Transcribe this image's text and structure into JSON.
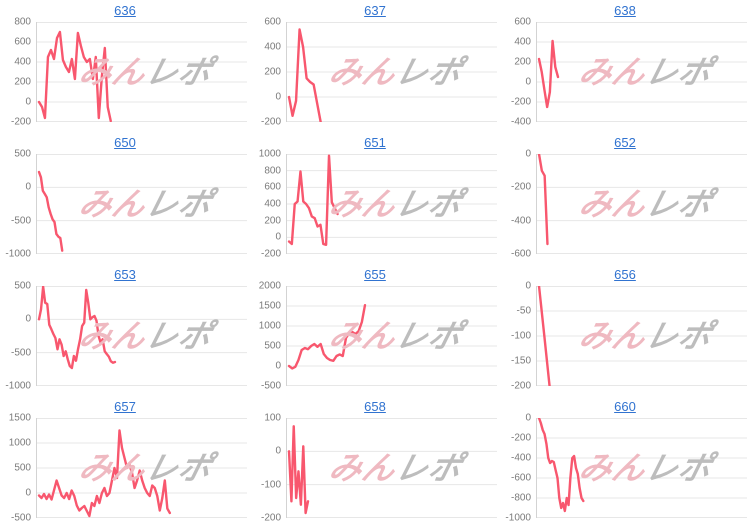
{
  "watermark": {
    "pink": "みん",
    "gray": "レポ"
  },
  "colors": {
    "line": "#f8576e",
    "grid": "#e7e7e7",
    "axis": "#d3d3d3",
    "link": "#3173d0"
  },
  "chart_data": [
    {
      "type": "line",
      "id": "636",
      "ylim": [
        -200,
        800
      ],
      "yticks": [
        800,
        600,
        400,
        200,
        0,
        -200
      ],
      "span": 0.34,
      "values": [
        0,
        -50,
        -160,
        450,
        520,
        430,
        640,
        700,
        420,
        350,
        300,
        430,
        230,
        690,
        560,
        450,
        400,
        430,
        230,
        450,
        -160,
        250,
        540,
        -50,
        -190
      ]
    },
    {
      "type": "line",
      "id": "637",
      "ylim": [
        -200,
        600
      ],
      "yticks": [
        600,
        400,
        200,
        0,
        -200
      ],
      "span": 0.15,
      "values": [
        0,
        -150,
        -30,
        540,
        400,
        150,
        120,
        100,
        -50,
        -200
      ]
    },
    {
      "type": "line",
      "id": "638",
      "ylim": [
        -400,
        600
      ],
      "yticks": [
        600,
        400,
        200,
        0,
        -200,
        -400
      ],
      "span": 0.09,
      "values": [
        230,
        100,
        -80,
        -250,
        -100,
        410,
        150,
        50
      ]
    },
    {
      "type": "line",
      "id": "650",
      "ylim": [
        -1000,
        500
      ],
      "yticks": [
        500,
        0,
        -500,
        -1000
      ],
      "span": 0.11,
      "values": [
        230,
        150,
        -50,
        -100,
        -150,
        -300,
        -400,
        -480,
        -520,
        -700,
        -740,
        -760,
        -950
      ]
    },
    {
      "type": "line",
      "id": "651",
      "ylim": [
        -200,
        1000
      ],
      "yticks": [
        1000,
        800,
        600,
        400,
        200,
        0,
        -200
      ],
      "span": 0.23,
      "values": [
        -50,
        -80,
        400,
        430,
        790,
        430,
        400,
        350,
        250,
        230,
        130,
        150,
        -80,
        -90,
        980,
        420,
        350,
        280
      ]
    },
    {
      "type": "line",
      "id": "652",
      "ylim": [
        -600,
        0
      ],
      "yticks": [
        0,
        -200,
        -400,
        -600
      ],
      "span": 0.04,
      "values": [
        0,
        -100,
        -130,
        -540
      ]
    },
    {
      "type": "line",
      "id": "653",
      "ylim": [
        -1000,
        500
      ],
      "yticks": [
        500,
        0,
        -500,
        -1000
      ],
      "span": 0.36,
      "values": [
        0,
        150,
        490,
        250,
        230,
        -80,
        -150,
        -220,
        -280,
        -450,
        -300,
        -380,
        -550,
        -480,
        -600,
        -700,
        -730,
        -550,
        -620,
        -450,
        -300,
        -100,
        -50,
        440,
        250,
        0,
        30,
        50,
        -20,
        -250,
        -350,
        -300,
        -480,
        -520,
        -560,
        -630,
        -650,
        -640
      ]
    },
    {
      "type": "line",
      "id": "655",
      "ylim": [
        -500,
        2000
      ],
      "yticks": [
        2000,
        1500,
        1000,
        500,
        0,
        -500
      ],
      "span": 0.36,
      "values": [
        0,
        -60,
        -20,
        150,
        400,
        450,
        420,
        500,
        550,
        480,
        550,
        300,
        200,
        150,
        130,
        250,
        290,
        250,
        700,
        820,
        850,
        800,
        870,
        1100,
        1520
      ]
    },
    {
      "type": "line",
      "id": "656",
      "ylim": [
        -200,
        0
      ],
      "yticks": [
        0,
        -50,
        -100,
        -150,
        -200
      ],
      "span": 0.05,
      "values": [
        0,
        -100,
        -200
      ]
    },
    {
      "type": "line",
      "id": "657",
      "ylim": [
        -500,
        1500
      ],
      "yticks": [
        1500,
        1000,
        500,
        0,
        -500
      ],
      "span": 0.62,
      "values": [
        -50,
        -100,
        -20,
        -120,
        -30,
        -130,
        60,
        250,
        100,
        -50,
        -100,
        0,
        -120,
        50,
        -60,
        -250,
        -350,
        -300,
        -260,
        -360,
        -460,
        -200,
        -260,
        -60,
        -200,
        0,
        100,
        -60,
        0,
        250,
        500,
        300,
        1250,
        900,
        700,
        500,
        560,
        400,
        100,
        250,
        450,
        250,
        100,
        0,
        -60,
        150,
        100,
        -60,
        -350,
        -100,
        250,
        -310,
        -400
      ]
    },
    {
      "type": "line",
      "id": "658",
      "ylim": [
        -200,
        100
      ],
      "yticks": [
        100,
        0,
        -100,
        -200
      ],
      "span": 0.09,
      "values": [
        0,
        -150,
        75,
        -140,
        -60,
        -160,
        15,
        -185,
        -150
      ]
    },
    {
      "type": "line",
      "id": "660",
      "ylim": [
        -1000,
        0
      ],
      "yticks": [
        0,
        -200,
        -400,
        -600,
        -800,
        -1000
      ],
      "span": 0.21,
      "values": [
        0,
        -50,
        -120,
        -160,
        -260,
        -400,
        -450,
        -430,
        -440,
        -520,
        -600,
        -800,
        -900,
        -850,
        -930,
        -800,
        -870,
        -600,
        -400,
        -380,
        -500,
        -560,
        -700,
        -800,
        -830
      ]
    }
  ]
}
